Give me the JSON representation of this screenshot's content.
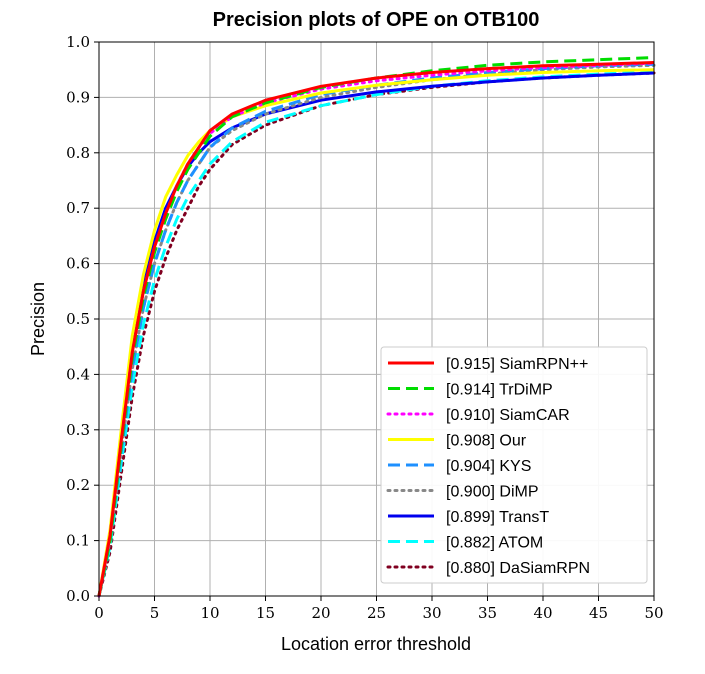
{
  "chart_data": {
    "type": "line",
    "title": "Precision plots of OPE on OTB100",
    "xlabel": "Location error threshold",
    "ylabel": "Precision",
    "xlim": [
      0,
      50
    ],
    "ylim": [
      0,
      1.0
    ],
    "grid": true,
    "legend_position": "bottom-right",
    "x_ticks": [
      "0",
      "5",
      "10",
      "15",
      "20",
      "25",
      "30",
      "35",
      "40",
      "45",
      "50"
    ],
    "y_ticks": [
      "0.0",
      "0.1",
      "0.2",
      "0.3",
      "0.4",
      "0.5",
      "0.6",
      "0.7",
      "0.8",
      "0.9",
      "1.0"
    ],
    "x": [
      0,
      1,
      2,
      3,
      4,
      5,
      6,
      7,
      8,
      9,
      10,
      12,
      15,
      20,
      25,
      30,
      35,
      40,
      45,
      50
    ],
    "series": [
      {
        "name": "SiamRPN++",
        "score": "[0.915]",
        "color": "#ff0000",
        "style": "solid",
        "values": [
          0.0,
          0.11,
          0.28,
          0.44,
          0.55,
          0.63,
          0.69,
          0.74,
          0.78,
          0.81,
          0.84,
          0.87,
          0.895,
          0.92,
          0.935,
          0.945,
          0.952,
          0.957,
          0.96,
          0.963
        ]
      },
      {
        "name": "TrDiMP",
        "score": "[0.914]",
        "color": "#00dd00",
        "style": "dashed",
        "values": [
          0.0,
          0.1,
          0.27,
          0.43,
          0.54,
          0.62,
          0.68,
          0.73,
          0.77,
          0.8,
          0.83,
          0.865,
          0.89,
          0.918,
          0.935,
          0.948,
          0.958,
          0.964,
          0.968,
          0.972
        ]
      },
      {
        "name": "SiamCAR",
        "score": "[0.910]",
        "color": "#ff00ff",
        "style": "dotted",
        "values": [
          0.0,
          0.11,
          0.28,
          0.44,
          0.55,
          0.63,
          0.69,
          0.74,
          0.78,
          0.81,
          0.835,
          0.865,
          0.89,
          0.915,
          0.93,
          0.94,
          0.948,
          0.954,
          0.958,
          0.962
        ]
      },
      {
        "name": "Our",
        "score": "[0.908]",
        "color": "#ffff00",
        "style": "solid",
        "values": [
          0.0,
          0.12,
          0.3,
          0.47,
          0.58,
          0.66,
          0.72,
          0.76,
          0.795,
          0.82,
          0.84,
          0.865,
          0.885,
          0.908,
          0.922,
          0.932,
          0.94,
          0.945,
          0.948,
          0.95
        ]
      },
      {
        "name": "KYS",
        "score": "[0.904]",
        "color": "#1e90ff",
        "style": "dashed",
        "values": [
          0.0,
          0.1,
          0.26,
          0.41,
          0.52,
          0.6,
          0.66,
          0.71,
          0.75,
          0.78,
          0.81,
          0.845,
          0.875,
          0.905,
          0.922,
          0.935,
          0.945,
          0.952,
          0.957,
          0.96
        ]
      },
      {
        "name": "DiMP",
        "score": "[0.900]",
        "color": "#888888",
        "style": "dotted",
        "values": [
          0.0,
          0.1,
          0.26,
          0.41,
          0.52,
          0.6,
          0.66,
          0.71,
          0.75,
          0.78,
          0.81,
          0.84,
          0.87,
          0.9,
          0.918,
          0.932,
          0.942,
          0.95,
          0.955,
          0.958
        ]
      },
      {
        "name": "TransT",
        "score": "[0.899]",
        "color": "#0000ee",
        "style": "solid",
        "values": [
          0.0,
          0.11,
          0.29,
          0.45,
          0.56,
          0.64,
          0.7,
          0.74,
          0.775,
          0.8,
          0.82,
          0.845,
          0.87,
          0.895,
          0.91,
          0.92,
          0.928,
          0.935,
          0.94,
          0.944
        ]
      },
      {
        "name": "ATOM",
        "score": "[0.882]",
        "color": "#00ffff",
        "style": "dashed",
        "values": [
          0.0,
          0.09,
          0.24,
          0.38,
          0.49,
          0.57,
          0.63,
          0.68,
          0.72,
          0.75,
          0.78,
          0.82,
          0.855,
          0.885,
          0.905,
          0.92,
          0.93,
          0.937,
          0.942,
          0.946
        ]
      },
      {
        "name": "DaSiamRPN",
        "score": "[0.880]",
        "color": "#800020",
        "style": "dotted",
        "values": [
          0.0,
          0.08,
          0.22,
          0.36,
          0.47,
          0.55,
          0.61,
          0.66,
          0.7,
          0.74,
          0.77,
          0.815,
          0.85,
          0.885,
          0.905,
          0.918,
          0.928,
          0.935,
          0.94,
          0.944
        ]
      }
    ]
  }
}
